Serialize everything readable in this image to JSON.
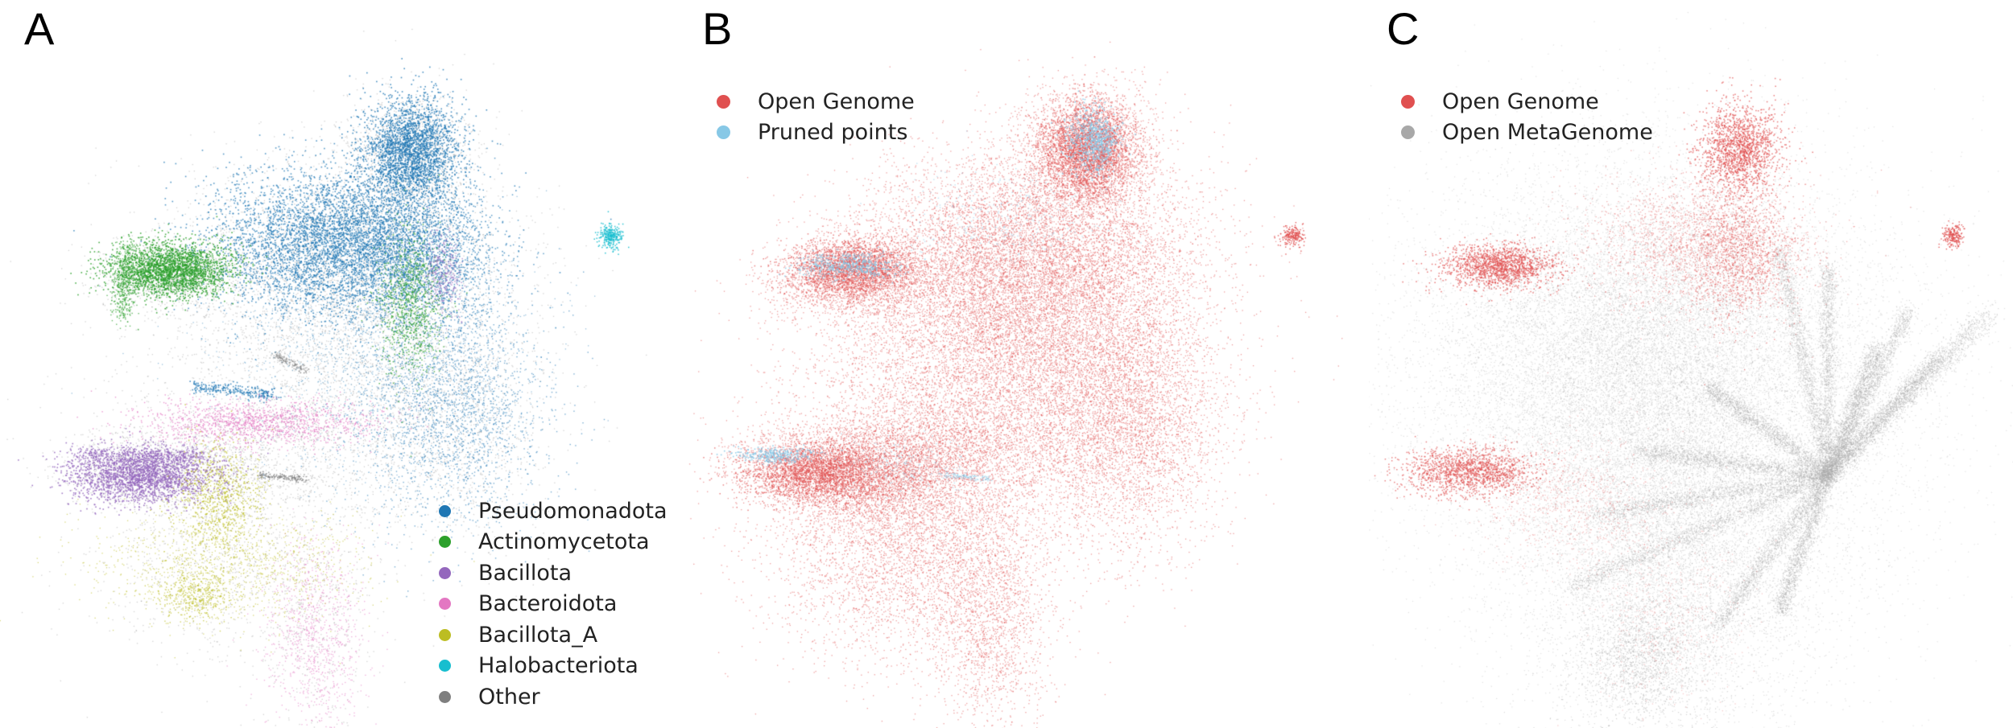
{
  "panels": [
    {
      "letter": "A",
      "legend": [
        {
          "label": "Pseudomonadota",
          "color": "#1f77b4"
        },
        {
          "label": "Actinomycetota",
          "color": "#2ca02c"
        },
        {
          "label": "Bacillota",
          "color": "#9467bd"
        },
        {
          "label": "Bacteroidota",
          "color": "#e377c2"
        },
        {
          "label": "Bacillota_A",
          "color": "#bcbd22"
        },
        {
          "label": "Halobacteriota",
          "color": "#17becf"
        },
        {
          "label": "Other",
          "color": "#7f7f7f"
        }
      ]
    },
    {
      "letter": "B",
      "legend": [
        {
          "label": "Open Genome",
          "color": "#e05050"
        },
        {
          "label": "Pruned points",
          "color": "#87c8e6"
        }
      ]
    },
    {
      "letter": "C",
      "legend": [
        {
          "label": "Open Genome",
          "color": "#e05050"
        },
        {
          "label": "Open MetaGenome",
          "color": "#a8a8a8"
        }
      ]
    }
  ],
  "chart_data": [
    {
      "type": "scatter",
      "title": "",
      "series": [
        {
          "name": "Pseudomonadota",
          "color": "#1f77b4"
        },
        {
          "name": "Actinomycetota",
          "color": "#2ca02c"
        },
        {
          "name": "Bacillota",
          "color": "#9467bd"
        },
        {
          "name": "Bacteroidota",
          "color": "#e377c2"
        },
        {
          "name": "Bacillota_A",
          "color": "#bcbd22"
        },
        {
          "name": "Halobacteriota",
          "color": "#17becf"
        },
        {
          "name": "Other",
          "color": "#7f7f7f"
        }
      ],
      "axes": "off",
      "grid": false,
      "legend_position": "lower-right"
    },
    {
      "type": "scatter",
      "title": "",
      "series": [
        {
          "name": "Open Genome",
          "color": "#e05050"
        },
        {
          "name": "Pruned points",
          "color": "#87c8e6"
        }
      ],
      "axes": "off",
      "grid": false,
      "legend_position": "top-left"
    },
    {
      "type": "scatter",
      "title": "",
      "series": [
        {
          "name": "Open Genome",
          "color": "#e05050"
        },
        {
          "name": "Open MetaGenome",
          "color": "#a8a8a8"
        }
      ],
      "axes": "off",
      "grid": false,
      "legend_position": "top-left"
    }
  ]
}
